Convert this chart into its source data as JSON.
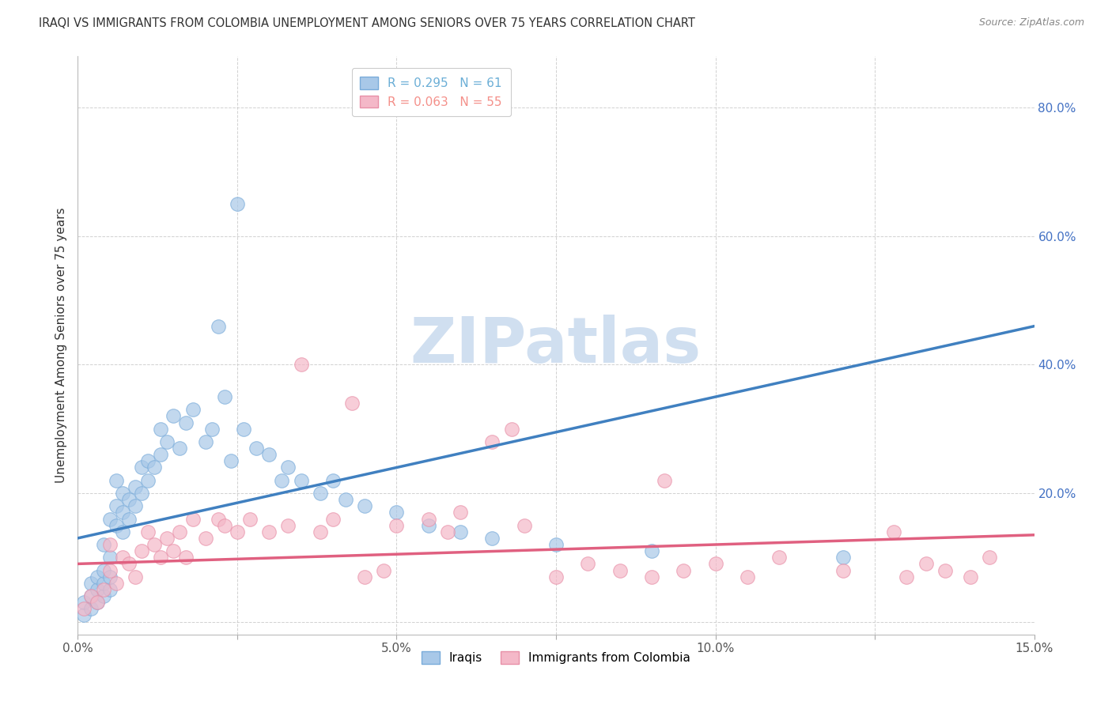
{
  "title": "IRAQI VS IMMIGRANTS FROM COLOMBIA UNEMPLOYMENT AMONG SENIORS OVER 75 YEARS CORRELATION CHART",
  "source": "Source: ZipAtlas.com",
  "ylabel_left": "Unemployment Among Seniors over 75 years",
  "xlim": [
    0.0,
    0.15
  ],
  "ylim": [
    -0.02,
    0.88
  ],
  "xticks": [
    0.0,
    0.025,
    0.05,
    0.075,
    0.1,
    0.125,
    0.15
  ],
  "xtick_labels": [
    "0.0%",
    "",
    "5.0%",
    "",
    "10.0%",
    "",
    "15.0%"
  ],
  "yticks": [
    0.0,
    0.2,
    0.4,
    0.6,
    0.8
  ],
  "ytick_labels_left": [
    "",
    "",
    "",
    "",
    ""
  ],
  "ytick_labels_right": [
    "",
    "20.0%",
    "40.0%",
    "60.0%",
    "80.0%"
  ],
  "legend_iraqi_label": "R = 0.295   N = 61",
  "legend_colombia_label": "R = 0.063   N = 55",
  "iraqi_color": "#a8c8e8",
  "colombia_color": "#f4b8c8",
  "iraqi_line_color": "#4080c0",
  "colombia_line_color": "#e06080",
  "iraqi_edge_color": "#7aacda",
  "colombia_edge_color": "#e890a8",
  "legend_iraqi_color": "#6baed6",
  "legend_colombia_color": "#f4908a",
  "watermark_text": "ZIPatlas",
  "watermark_color": "#d0dff0",
  "iraqi_x": [
    0.001,
    0.001,
    0.002,
    0.002,
    0.002,
    0.003,
    0.003,
    0.003,
    0.004,
    0.004,
    0.004,
    0.004,
    0.005,
    0.005,
    0.005,
    0.005,
    0.006,
    0.006,
    0.006,
    0.007,
    0.007,
    0.007,
    0.008,
    0.008,
    0.009,
    0.009,
    0.01,
    0.01,
    0.011,
    0.011,
    0.012,
    0.013,
    0.013,
    0.014,
    0.015,
    0.016,
    0.017,
    0.018,
    0.02,
    0.021,
    0.022,
    0.023,
    0.024,
    0.025,
    0.026,
    0.028,
    0.03,
    0.032,
    0.033,
    0.035,
    0.038,
    0.04,
    0.042,
    0.045,
    0.05,
    0.055,
    0.06,
    0.065,
    0.075,
    0.09,
    0.12
  ],
  "iraqi_y": [
    0.01,
    0.03,
    0.02,
    0.04,
    0.06,
    0.03,
    0.05,
    0.07,
    0.04,
    0.06,
    0.08,
    0.12,
    0.05,
    0.07,
    0.1,
    0.16,
    0.15,
    0.18,
    0.22,
    0.14,
    0.17,
    0.2,
    0.16,
    0.19,
    0.18,
    0.21,
    0.2,
    0.24,
    0.22,
    0.25,
    0.24,
    0.26,
    0.3,
    0.28,
    0.32,
    0.27,
    0.31,
    0.33,
    0.28,
    0.3,
    0.46,
    0.35,
    0.25,
    0.65,
    0.3,
    0.27,
    0.26,
    0.22,
    0.24,
    0.22,
    0.2,
    0.22,
    0.19,
    0.18,
    0.17,
    0.15,
    0.14,
    0.13,
    0.12,
    0.11,
    0.1
  ],
  "colombia_x": [
    0.001,
    0.002,
    0.003,
    0.004,
    0.005,
    0.005,
    0.006,
    0.007,
    0.008,
    0.009,
    0.01,
    0.011,
    0.012,
    0.013,
    0.014,
    0.015,
    0.016,
    0.017,
    0.018,
    0.02,
    0.022,
    0.023,
    0.025,
    0.027,
    0.03,
    0.033,
    0.035,
    0.038,
    0.04,
    0.043,
    0.045,
    0.048,
    0.05,
    0.055,
    0.058,
    0.06,
    0.065,
    0.068,
    0.07,
    0.075,
    0.08,
    0.085,
    0.09,
    0.092,
    0.095,
    0.1,
    0.105,
    0.11,
    0.12,
    0.128,
    0.13,
    0.133,
    0.136,
    0.14,
    0.143
  ],
  "colombia_y": [
    0.02,
    0.04,
    0.03,
    0.05,
    0.08,
    0.12,
    0.06,
    0.1,
    0.09,
    0.07,
    0.11,
    0.14,
    0.12,
    0.1,
    0.13,
    0.11,
    0.14,
    0.1,
    0.16,
    0.13,
    0.16,
    0.15,
    0.14,
    0.16,
    0.14,
    0.15,
    0.4,
    0.14,
    0.16,
    0.34,
    0.07,
    0.08,
    0.15,
    0.16,
    0.14,
    0.17,
    0.28,
    0.3,
    0.15,
    0.07,
    0.09,
    0.08,
    0.07,
    0.22,
    0.08,
    0.09,
    0.07,
    0.1,
    0.08,
    0.14,
    0.07,
    0.09,
    0.08,
    0.07,
    0.1
  ],
  "iraqi_line_x": [
    0.0,
    0.15
  ],
  "iraqi_line_y": [
    0.13,
    0.46
  ],
  "colombia_line_x": [
    0.0,
    0.15
  ],
  "colombia_line_y": [
    0.09,
    0.135
  ]
}
